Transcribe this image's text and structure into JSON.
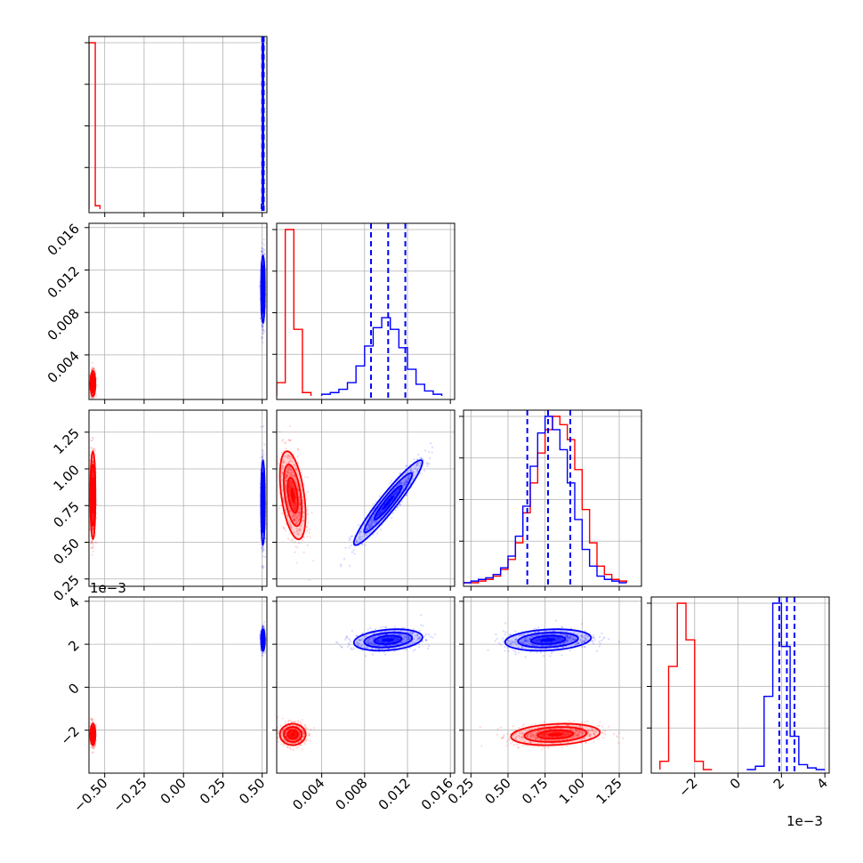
{
  "chart_data": {
    "type": "corner",
    "grid": true,
    "colors": {
      "red": "#ff0000",
      "blue": "#0000ff",
      "grid": "#b0b0b0"
    },
    "parameters": [
      {
        "range": [
          -0.6,
          0.53
        ],
        "ticks": [
          -0.5,
          -0.25,
          0.0,
          0.25,
          0.5
        ],
        "tick_labels": [
          "−0.50",
          "−0.25",
          "0.00",
          "0.25",
          "0.50"
        ],
        "offset": ""
      },
      {
        "range": [
          -0.0002,
          0.0164
        ],
        "ticks": [
          0.004,
          0.008,
          0.012,
          0.016
        ],
        "tick_labels": [
          "0.004",
          "0.008",
          "0.012",
          "0.016"
        ],
        "offset": ""
      },
      {
        "range": [
          0.2,
          1.4
        ],
        "ticks": [
          0.25,
          0.5,
          0.75,
          1.0,
          1.25
        ],
        "tick_labels": [
          "0.25",
          "0.50",
          "0.75",
          "1.00",
          "1.25"
        ],
        "offset": ""
      },
      {
        "range": [
          -4.0,
          4.2
        ],
        "ticks": [
          -2,
          0,
          2,
          4
        ],
        "tick_labels": [
          "−2",
          "0",
          "2",
          "4"
        ],
        "offset": "1e−3"
      }
    ],
    "series": [
      {
        "color": "red",
        "mean": [
          -0.575,
          0.0013,
          0.82,
          -2.2
        ],
        "std": [
          0.008,
          0.0006,
          0.15,
          0.25
        ],
        "corr": {
          "2-1": -0.45,
          "3-2": 0.2
        },
        "hist": [
          {
            "edges": [
              -0.6,
              -0.56,
              -0.53
            ],
            "counts": [
              100,
              2
            ]
          },
          {
            "edges": [
              -0.0002,
              0.0006,
              0.0014,
              0.0022,
              0.003
            ],
            "counts": [
              8,
              100,
              40,
              2
            ]
          },
          {
            "edges": [
              0.2,
              0.25,
              0.3,
              0.35,
              0.4,
              0.45,
              0.5,
              0.55,
              0.6,
              0.65,
              0.7,
              0.75,
              0.8,
              0.85,
              0.9,
              0.95,
              1.0,
              1.05,
              1.1,
              1.15,
              1.2,
              1.25,
              1.3
            ],
            "counts": [
              0,
              0,
              1,
              2,
              4,
              8,
              14,
              24,
              42,
              60,
              78,
              92,
              100,
              95,
              86,
              68,
              44,
              24,
              10,
              5,
              2,
              1
            ]
          },
          {
            "edges": [
              -3.6,
              -3.2,
              -2.8,
              -2.4,
              -2.0,
              -1.6,
              -1.2
            ],
            "counts": [
              5,
              62,
              100,
              78,
              5,
              0
            ]
          }
        ]
      },
      {
        "color": "blue",
        "mean": [
          0.505,
          0.0102,
          0.77,
          2.2
        ],
        "std": [
          0.006,
          0.0016,
          0.145,
          0.25
        ],
        "corr": {
          "1-0": 0.0,
          "2-1": 0.95,
          "3-1": 0.25,
          "3-2": 0.2
        },
        "quantiles": [
          [
            0.5,
            0.505,
            0.51
          ],
          [
            0.0086,
            0.0102,
            0.0118
          ],
          [
            0.63,
            0.77,
            0.92
          ],
          [
            1.9,
            2.25,
            2.6
          ]
        ],
        "hist": [
          {
            "edges": [
              0.495,
              0.5005,
              0.5085
            ],
            "counts": [
              3,
              100
            ]
          },
          {
            "edges": [
              0.004,
              0.0048,
              0.0056,
              0.0064,
              0.0072,
              0.008,
              0.0088,
              0.0096,
              0.0104,
              0.0112,
              0.012,
              0.0128,
              0.0136,
              0.0144,
              0.0152
            ],
            "counts": [
              1,
              2,
              4,
              8,
              18,
              30,
              41,
              47,
              40,
              29,
              16,
              7,
              3,
              1
            ]
          },
          {
            "edges": [
              0.2,
              0.25,
              0.3,
              0.35,
              0.4,
              0.45,
              0.5,
              0.55,
              0.6,
              0.65,
              0.7,
              0.75,
              0.8,
              0.85,
              0.9,
              0.95,
              1.0,
              1.05,
              1.1,
              1.15,
              1.2,
              1.25,
              1.3
            ],
            "counts": [
              0,
              1,
              2,
              3,
              5,
              9,
              16,
              28,
              46,
              70,
              90,
              100,
              92,
              80,
              60,
              38,
              20,
              10,
              4,
              2,
              1,
              0
            ]
          },
          {
            "edges": [
              0.4,
              0.8,
              1.2,
              1.6,
              2.0,
              2.4,
              2.8,
              3.2,
              3.6,
              4.0
            ],
            "counts": [
              0,
              2,
              44,
              100,
              74,
              20,
              3,
              1,
              0
            ]
          }
        ]
      }
    ]
  }
}
